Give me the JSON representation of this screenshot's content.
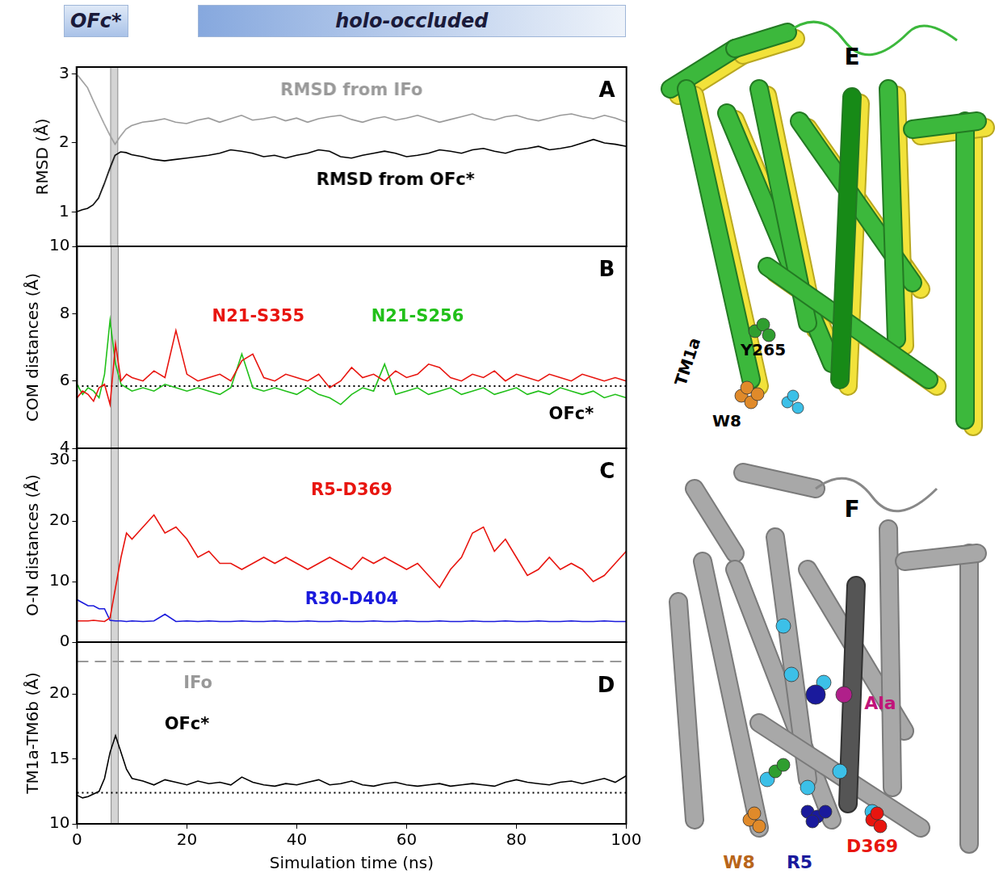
{
  "chart_data": [
    {
      "type": "line",
      "letter": "A",
      "y_label": "RMSD (Å)",
      "tick_labels": "y",
      "x": [
        0,
        1,
        2,
        3,
        4,
        5,
        6,
        7,
        8,
        9,
        10,
        12,
        14,
        16,
        18,
        20,
        22,
        24,
        26,
        28,
        30,
        32,
        34,
        36,
        38,
        40,
        42,
        44,
        46,
        48,
        50,
        52,
        54,
        56,
        58,
        60,
        62,
        64,
        66,
        68,
        70,
        72,
        74,
        76,
        78,
        80,
        82,
        84,
        86,
        88,
        90,
        92,
        94,
        96,
        98,
        100
      ],
      "xlim": [
        0,
        100
      ],
      "xticks": [
        0,
        20,
        40,
        60,
        80,
        100
      ],
      "ylim": [
        0.5,
        3.1
      ],
      "yticks": [
        1,
        2,
        3
      ],
      "highlight_x": [
        6.2,
        7.5
      ],
      "series": [
        {
          "name": "RMSD from IFo",
          "color": "#999999",
          "values": [
            3.0,
            2.9,
            2.8,
            2.62,
            2.45,
            2.28,
            2.12,
            1.98,
            2.1,
            2.2,
            2.25,
            2.3,
            2.32,
            2.35,
            2.3,
            2.28,
            2.33,
            2.36,
            2.3,
            2.35,
            2.4,
            2.33,
            2.35,
            2.38,
            2.32,
            2.36,
            2.3,
            2.35,
            2.38,
            2.4,
            2.34,
            2.3,
            2.35,
            2.38,
            2.33,
            2.36,
            2.4,
            2.35,
            2.3,
            2.34,
            2.38,
            2.42,
            2.36,
            2.33,
            2.38,
            2.4,
            2.35,
            2.32,
            2.36,
            2.4,
            2.42,
            2.38,
            2.35,
            2.4,
            2.36,
            2.3
          ]
        },
        {
          "name": "RMSD from OFc*",
          "color": "#000000",
          "values": [
            1.0,
            1.03,
            1.05,
            1.1,
            1.2,
            1.4,
            1.62,
            1.82,
            1.87,
            1.86,
            1.83,
            1.8,
            1.76,
            1.74,
            1.76,
            1.78,
            1.8,
            1.82,
            1.85,
            1.9,
            1.88,
            1.85,
            1.8,
            1.82,
            1.78,
            1.82,
            1.85,
            1.9,
            1.88,
            1.8,
            1.78,
            1.82,
            1.85,
            1.88,
            1.85,
            1.8,
            1.82,
            1.85,
            1.9,
            1.88,
            1.85,
            1.9,
            1.92,
            1.88,
            1.85,
            1.9,
            1.92,
            1.95,
            1.9,
            1.92,
            1.95,
            2.0,
            2.05,
            2.0,
            1.98,
            1.95
          ]
        }
      ]
    },
    {
      "type": "line",
      "letter": "B",
      "y_label": "COM distances (Å)",
      "tick_labels": "y",
      "x": [
        0,
        1,
        2,
        3,
        4,
        5,
        6,
        7,
        8,
        9,
        10,
        12,
        14,
        16,
        18,
        20,
        22,
        24,
        26,
        28,
        30,
        32,
        34,
        36,
        38,
        40,
        42,
        44,
        46,
        48,
        50,
        52,
        54,
        56,
        58,
        60,
        62,
        64,
        66,
        68,
        70,
        72,
        74,
        76,
        78,
        80,
        82,
        84,
        86,
        88,
        90,
        92,
        94,
        96,
        98,
        100
      ],
      "xlim": [
        0,
        100
      ],
      "xticks": [
        0,
        20,
        40,
        60,
        80,
        100
      ],
      "ylim": [
        4,
        10
      ],
      "yticks": [
        4,
        6,
        8,
        10
      ],
      "highlight_x": [
        6.2,
        7.5
      ],
      "reference_lines": [
        {
          "value": 5.85,
          "label": "OFc*",
          "line_style": "dotted",
          "color": "#000000"
        }
      ],
      "series": [
        {
          "name": "N21-S355",
          "color": "#e8150f",
          "values": [
            5.5,
            5.7,
            5.6,
            5.4,
            5.8,
            5.9,
            5.3,
            7.1,
            6.0,
            6.2,
            6.1,
            6.0,
            6.3,
            6.1,
            7.5,
            6.2,
            6.0,
            6.1,
            6.2,
            6.0,
            6.6,
            6.8,
            6.1,
            6.0,
            6.2,
            6.1,
            6.0,
            6.2,
            5.8,
            6.0,
            6.4,
            6.1,
            6.2,
            6.0,
            6.3,
            6.1,
            6.2,
            6.5,
            6.4,
            6.1,
            6.0,
            6.2,
            6.1,
            6.3,
            6.0,
            6.2,
            6.1,
            6.0,
            6.2,
            6.1,
            6.0,
            6.2,
            6.1,
            6.0,
            6.1,
            6.0
          ]
        },
        {
          "name": "N21-S256",
          "color": "#22c01a",
          "values": [
            5.9,
            5.6,
            5.8,
            5.7,
            5.5,
            6.2,
            7.8,
            6.5,
            5.9,
            5.8,
            5.7,
            5.8,
            5.7,
            5.9,
            5.8,
            5.7,
            5.8,
            5.7,
            5.6,
            5.8,
            6.8,
            5.8,
            5.7,
            5.8,
            5.7,
            5.6,
            5.8,
            5.6,
            5.5,
            5.3,
            5.6,
            5.8,
            5.7,
            6.5,
            5.6,
            5.7,
            5.8,
            5.6,
            5.7,
            5.8,
            5.6,
            5.7,
            5.8,
            5.6,
            5.7,
            5.8,
            5.6,
            5.7,
            5.6,
            5.8,
            5.7,
            5.6,
            5.7,
            5.5,
            5.6,
            5.5
          ]
        }
      ]
    },
    {
      "type": "line",
      "letter": "C",
      "y_label": "O-N distances (Å)",
      "tick_labels": "y",
      "x": [
        0,
        1,
        2,
        3,
        4,
        5,
        6,
        7,
        8,
        9,
        10,
        12,
        14,
        16,
        18,
        20,
        22,
        24,
        26,
        28,
        30,
        32,
        34,
        36,
        38,
        40,
        42,
        44,
        46,
        48,
        50,
        52,
        54,
        56,
        58,
        60,
        62,
        64,
        66,
        68,
        70,
        72,
        74,
        76,
        78,
        80,
        82,
        84,
        86,
        88,
        90,
        92,
        94,
        96,
        98,
        100
      ],
      "xlim": [
        0,
        100
      ],
      "xticks": [
        0,
        20,
        40,
        60,
        80,
        100
      ],
      "ylim": [
        0,
        32
      ],
      "yticks": [
        0,
        10,
        20,
        30
      ],
      "highlight_x": [
        6.2,
        7.5
      ],
      "series": [
        {
          "name": "R5-D369",
          "color": "#e8150f",
          "values": [
            3.5,
            3.5,
            3.5,
            3.6,
            3.5,
            3.4,
            4,
            9,
            14,
            18,
            17,
            19,
            21,
            18,
            19,
            17,
            14,
            15,
            13,
            13,
            12,
            13,
            14,
            13,
            14,
            13,
            12,
            13,
            14,
            13,
            12,
            14,
            13,
            14,
            13,
            12,
            13,
            11,
            9,
            12,
            14,
            18,
            19,
            15,
            17,
            14,
            11,
            12,
            14,
            12,
            13,
            12,
            10,
            11,
            13,
            15
          ]
        },
        {
          "name": "R30-D404",
          "color": "#1a1adc",
          "values": [
            7,
            6.5,
            6,
            6,
            5.5,
            5.5,
            3.6,
            3.5,
            3.5,
            3.4,
            3.5,
            3.4,
            3.5,
            4.6,
            3.4,
            3.5,
            3.4,
            3.5,
            3.4,
            3.4,
            3.5,
            3.4,
            3.4,
            3.5,
            3.4,
            3.4,
            3.5,
            3.4,
            3.4,
            3.5,
            3.4,
            3.4,
            3.5,
            3.4,
            3.4,
            3.5,
            3.4,
            3.4,
            3.5,
            3.4,
            3.4,
            3.5,
            3.4,
            3.4,
            3.5,
            3.4,
            3.4,
            3.5,
            3.4,
            3.4,
            3.5,
            3.4,
            3.4,
            3.5,
            3.4,
            3.4
          ]
        }
      ]
    },
    {
      "type": "line",
      "letter": "D",
      "y_label": "TM1a-TM6b (Å)",
      "x_label": "Simulation time (ns)",
      "x": [
        0,
        1,
        2,
        3,
        4,
        5,
        6,
        7,
        8,
        9,
        10,
        12,
        14,
        16,
        18,
        20,
        22,
        24,
        26,
        28,
        30,
        32,
        34,
        36,
        38,
        40,
        42,
        44,
        46,
        48,
        50,
        52,
        54,
        56,
        58,
        60,
        62,
        64,
        66,
        68,
        70,
        72,
        74,
        76,
        78,
        80,
        82,
        84,
        86,
        88,
        90,
        92,
        94,
        96,
        98,
        100
      ],
      "xlim": [
        0,
        100
      ],
      "xticks": [
        0,
        20,
        40,
        60,
        80,
        100
      ],
      "ylim": [
        10,
        24
      ],
      "yticks": [
        10,
        15,
        20
      ],
      "highlight_x": [
        6.2,
        7.5
      ],
      "reference_lines": [
        {
          "value": 12.4,
          "label": "OFc*",
          "line_style": "dotted",
          "color": "#000000"
        },
        {
          "value": 22.5,
          "label": "IFo",
          "line_style": "dashed",
          "color": "#999999"
        }
      ],
      "series": [
        {
          "color": "#000000",
          "values": [
            12.2,
            12.0,
            12.1,
            12.3,
            12.5,
            13.5,
            15.5,
            16.8,
            15.5,
            14.2,
            13.5,
            13.3,
            13.0,
            13.4,
            13.2,
            13.0,
            13.3,
            13.1,
            13.2,
            13.0,
            13.6,
            13.2,
            13.0,
            12.9,
            13.1,
            13.0,
            13.2,
            13.4,
            13.0,
            13.1,
            13.3,
            13.0,
            12.9,
            13.1,
            13.2,
            13.0,
            12.9,
            13.0,
            13.1,
            12.9,
            13.0,
            13.1,
            13.0,
            12.9,
            13.2,
            13.4,
            13.2,
            13.1,
            13.0,
            13.2,
            13.3,
            13.1,
            13.3,
            13.5,
            13.2,
            13.7
          ]
        }
      ]
    }
  ],
  "header": {
    "phases": [
      {
        "label": "OFc*",
        "range": [
          0,
          7
        ]
      },
      {
        "label": "holo-occluded",
        "range": [
          22,
          100
        ]
      }
    ]
  },
  "structures": [
    {
      "letter": "E",
      "labels": [
        {
          "text": "Y265",
          "color": "#000000"
        },
        {
          "text": "TM1a",
          "color": "#000000"
        },
        {
          "text": "W8",
          "color": "#000000"
        }
      ]
    },
    {
      "letter": "F",
      "labels": [
        {
          "text": "Ala",
          "color": "#c0147a"
        },
        {
          "text": "W8",
          "color": "#b8651a"
        },
        {
          "text": "R5",
          "color": "#1a1a9c"
        },
        {
          "text": "D369",
          "color": "#e8150f"
        }
      ]
    }
  ]
}
